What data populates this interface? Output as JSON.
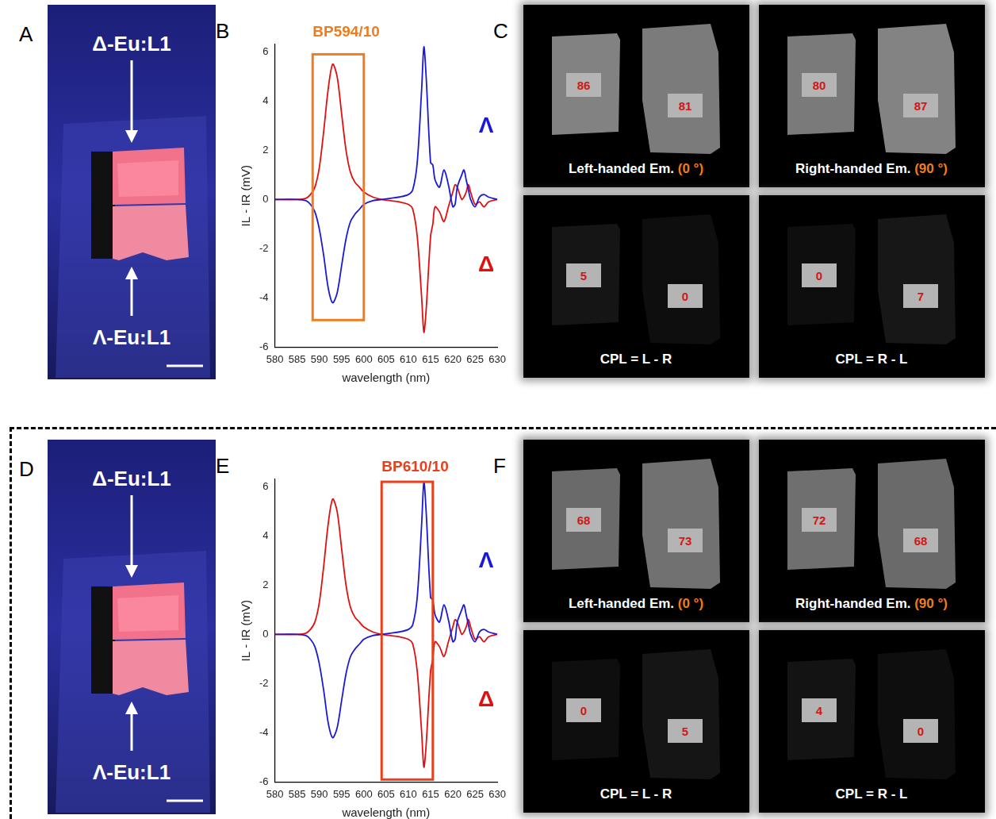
{
  "panel_letters": [
    [
      "A",
      "B",
      "C"
    ],
    [
      "D",
      "E",
      "F"
    ]
  ],
  "photos": [
    {
      "top_label": "Δ-Eu:L1",
      "bottom_label": "Λ-Eu:L1"
    },
    {
      "top_label": "Δ-Eu:L1",
      "bottom_label": "Λ-Eu:L1"
    }
  ],
  "chart_data": [
    {
      "type": "line",
      "x_label": "wavelength (nm)",
      "y_label": "IL - IR (mV)",
      "x": [
        580,
        585,
        587,
        588,
        589,
        590,
        591,
        592,
        593,
        594,
        595,
        596,
        597,
        598,
        599,
        600,
        602,
        604,
        606,
        608,
        610,
        611,
        612,
        613,
        613.5,
        614,
        615,
        615.5,
        616,
        617,
        618,
        619,
        620,
        620.5,
        621,
        622,
        622.5,
        623,
        623.5,
        624,
        625,
        626,
        627,
        628,
        630
      ],
      "series": [
        {
          "name": "Λ",
          "color": "#1a1ad6",
          "values": [
            0,
            0,
            -0.05,
            -0.2,
            -0.5,
            -1.2,
            -2.3,
            -3.6,
            -4.2,
            -3.8,
            -2.7,
            -1.6,
            -0.9,
            -0.6,
            -0.4,
            -0.2,
            -0.05,
            0,
            0.05,
            0.1,
            0.2,
            0.4,
            1.5,
            4.5,
            6.2,
            5.0,
            1.5,
            1.4,
            0.8,
            0.5,
            1.2,
            0.6,
            -0.3,
            -0.2,
            0.5,
            1.0,
            1.2,
            0.8,
            0.4,
            0,
            -0.3,
            0.1,
            0.2,
            0.1,
            0
          ]
        },
        {
          "name": "Δ",
          "color": "#e01010",
          "values": [
            0,
            0,
            0.05,
            0.2,
            0.5,
            1.3,
            2.8,
            4.5,
            5.5,
            5.0,
            3.5,
            2.0,
            1.1,
            0.7,
            0.5,
            0.3,
            0.1,
            0,
            -0.05,
            -0.1,
            -0.2,
            -0.4,
            -1.5,
            -4.0,
            -5.4,
            -4.5,
            -1.5,
            -1.0,
            -0.3,
            -0.5,
            -0.9,
            -0.3,
            0.3,
            0.6,
            0.5,
            0,
            0.1,
            0.3,
            0.6,
            0.3,
            -0.2,
            -0.1,
            -0.3,
            -0.1,
            0
          ]
        }
      ],
      "xlim": [
        580,
        630
      ],
      "xticks": [
        580,
        585,
        590,
        595,
        600,
        605,
        610,
        615,
        620,
        625,
        630
      ],
      "ylim": [
        -6,
        6.3
      ],
      "yticks": [
        -6,
        -4,
        -2,
        0,
        2,
        4,
        6
      ],
      "grid": false,
      "annotations": [
        {
          "text": "BP594/10",
          "x": [
            588.5,
            600
          ],
          "y": [
            -4.9,
            5.9
          ],
          "color": "#f07c1f"
        }
      ]
    },
    {
      "type": "line",
      "x_label": "wavelength (nm)",
      "y_label": "IL - IR (mV)",
      "x": [
        580,
        585,
        587,
        588,
        589,
        590,
        591,
        592,
        593,
        594,
        595,
        596,
        597,
        598,
        599,
        600,
        602,
        604,
        606,
        608,
        610,
        611,
        612,
        613,
        613.5,
        614,
        615,
        615.5,
        616,
        617,
        618,
        619,
        620,
        620.5,
        621,
        622,
        622.5,
        623,
        623.5,
        624,
        625,
        626,
        627,
        628,
        630
      ],
      "series": [
        {
          "name": "Λ",
          "color": "#1a1ad6",
          "values": [
            0,
            0,
            -0.05,
            -0.2,
            -0.5,
            -1.2,
            -2.3,
            -3.6,
            -4.2,
            -3.8,
            -2.7,
            -1.6,
            -0.9,
            -0.6,
            -0.4,
            -0.2,
            -0.05,
            0,
            0.05,
            0.1,
            0.2,
            0.4,
            1.5,
            4.5,
            6.2,
            5.0,
            1.5,
            1.4,
            0.8,
            0.5,
            1.2,
            0.6,
            -0.3,
            -0.2,
            0.5,
            1.0,
            1.2,
            0.8,
            0.4,
            0,
            -0.3,
            0.1,
            0.2,
            0.1,
            0
          ]
        },
        {
          "name": "Δ",
          "color": "#e01010",
          "values": [
            0,
            0,
            0.05,
            0.2,
            0.5,
            1.3,
            2.8,
            4.5,
            5.5,
            5.0,
            3.5,
            2.0,
            1.1,
            0.7,
            0.5,
            0.3,
            0.1,
            0,
            -0.05,
            -0.1,
            -0.2,
            -0.4,
            -1.5,
            -4.0,
            -5.4,
            -4.5,
            -1.5,
            -1.0,
            -0.3,
            -0.5,
            -0.9,
            -0.3,
            0.3,
            0.6,
            0.5,
            0,
            0.1,
            0.3,
            0.6,
            0.3,
            -0.2,
            -0.1,
            -0.3,
            -0.1,
            0
          ]
        }
      ],
      "xlim": [
        580,
        630
      ],
      "xticks": [
        580,
        585,
        590,
        595,
        600,
        605,
        610,
        615,
        620,
        625,
        630
      ],
      "ylim": [
        -6,
        6.3
      ],
      "yticks": [
        -6,
        -4,
        -2,
        0,
        2,
        4,
        6
      ],
      "grid": false,
      "annotations": [
        {
          "text": "BP610/10",
          "x": [
            604,
            615.5
          ],
          "y": [
            -5.9,
            6.2
          ],
          "color": "#e8401c"
        }
      ]
    }
  ],
  "image_panels": [
    {
      "tiles": [
        {
          "caption": "Left-handed Em.",
          "angle": "(0 °)",
          "values": [
            86,
            81
          ]
        },
        {
          "caption": "Right-handed Em.",
          "angle": "(90 °)",
          "values": [
            80,
            87
          ]
        },
        {
          "caption": "CPL = L - R",
          "values": [
            5,
            0
          ]
        },
        {
          "caption": "CPL = R - L",
          "values": [
            0,
            7
          ]
        }
      ]
    },
    {
      "tiles": [
        {
          "caption": "Left-handed Em.",
          "angle": "(0 °)",
          "values": [
            68,
            73
          ]
        },
        {
          "caption": "Right-handed Em.",
          "angle": "(90 °)",
          "values": [
            72,
            68
          ]
        },
        {
          "caption": "CPL = L - R",
          "values": [
            0,
            5
          ]
        },
        {
          "caption": "CPL = R - L",
          "values": [
            4,
            0
          ]
        }
      ]
    }
  ]
}
